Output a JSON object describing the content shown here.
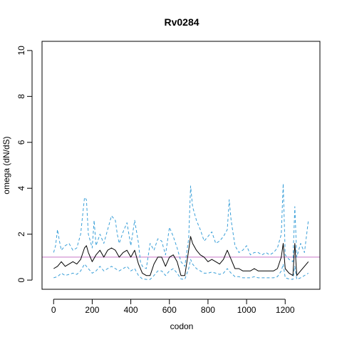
{
  "chart_data": {
    "type": "line",
    "title": "Rv0284",
    "xlabel": "codon",
    "ylabel": "omega (dN/dS)",
    "xlim": [
      -60,
      1380
    ],
    "ylim": [
      -0.4,
      10.4
    ],
    "x_ticks": [
      0,
      200,
      400,
      600,
      800,
      1000,
      1200
    ],
    "y_ticks": [
      0,
      2,
      4,
      6,
      8,
      10
    ],
    "reference_line": {
      "y": 1,
      "color": "#c678c6"
    },
    "colors": {
      "estimate": "#000000",
      "bounds": "#3a9fd8"
    },
    "series": [
      {
        "role": "omega",
        "style": "solid",
        "x": [
          0,
          20,
          40,
          60,
          80,
          100,
          120,
          140,
          160,
          170,
          180,
          200,
          220,
          240,
          260,
          280,
          300,
          320,
          340,
          360,
          380,
          400,
          420,
          440,
          460,
          480,
          500,
          520,
          540,
          560,
          580,
          600,
          620,
          640,
          660,
          680,
          700,
          710,
          720,
          740,
          760,
          780,
          800,
          820,
          840,
          860,
          880,
          900,
          910,
          920,
          940,
          960,
          980,
          1000,
          1020,
          1040,
          1060,
          1080,
          1100,
          1120,
          1140,
          1160,
          1180,
          1190,
          1200,
          1220,
          1240,
          1250,
          1260,
          1280,
          1300,
          1320
        ],
        "y": [
          0.5,
          0.6,
          0.8,
          0.6,
          0.7,
          0.8,
          0.7,
          0.9,
          1.4,
          1.5,
          1.2,
          0.8,
          1.1,
          1.3,
          1.0,
          1.3,
          1.4,
          1.3,
          1.0,
          1.2,
          1.3,
          1.0,
          1.3,
          0.7,
          0.3,
          0.2,
          0.2,
          0.7,
          1.0,
          1.0,
          0.6,
          1.0,
          1.1,
          0.8,
          0.2,
          0.2,
          1.3,
          1.9,
          1.6,
          1.3,
          1.1,
          1.0,
          0.8,
          0.9,
          0.8,
          0.7,
          0.9,
          1.3,
          1.1,
          0.9,
          0.5,
          0.5,
          0.4,
          0.4,
          0.4,
          0.5,
          0.4,
          0.4,
          0.4,
          0.4,
          0.4,
          0.5,
          1.0,
          1.6,
          0.5,
          0.3,
          0.2,
          1.6,
          0.2,
          0.4,
          0.6,
          0.8
        ]
      },
      {
        "role": "upper bound",
        "style": "dashed",
        "x": [
          0,
          10,
          20,
          30,
          40,
          60,
          80,
          100,
          120,
          140,
          160,
          170,
          180,
          200,
          210,
          220,
          240,
          260,
          280,
          300,
          320,
          330,
          340,
          360,
          380,
          400,
          420,
          440,
          450,
          460,
          480,
          500,
          520,
          540,
          560,
          580,
          600,
          620,
          640,
          660,
          680,
          700,
          710,
          720,
          740,
          760,
          780,
          800,
          820,
          840,
          860,
          880,
          900,
          910,
          920,
          940,
          960,
          980,
          1000,
          1020,
          1040,
          1060,
          1080,
          1100,
          1120,
          1140,
          1160,
          1180,
          1190,
          1200,
          1220,
          1240,
          1250,
          1260,
          1280,
          1300,
          1320
        ],
        "y": [
          1.2,
          1.5,
          2.2,
          1.7,
          1.3,
          1.5,
          1.6,
          1.3,
          1.4,
          2.0,
          3.6,
          3.5,
          2.0,
          1.4,
          2.6,
          1.5,
          2.0,
          1.6,
          2.2,
          2.8,
          2.6,
          2.0,
          1.6,
          2.1,
          2.5,
          1.5,
          2.6,
          1.6,
          0.8,
          0.6,
          0.5,
          1.6,
          1.3,
          1.8,
          1.7,
          1.1,
          2.3,
          1.9,
          1.4,
          0.8,
          0.6,
          1.8,
          4.1,
          3.2,
          2.6,
          2.2,
          1.7,
          1.9,
          2.1,
          1.6,
          1.7,
          1.9,
          2.2,
          3.5,
          2.6,
          1.5,
          1.2,
          1.3,
          1.5,
          1.1,
          1.2,
          1.2,
          1.1,
          1.2,
          1.1,
          1.2,
          1.4,
          2.0,
          4.2,
          1.1,
          0.9,
          0.8,
          3.2,
          1.0,
          1.6,
          1.2,
          2.6
        ]
      },
      {
        "role": "lower bound",
        "style": "dashed",
        "x": [
          0,
          20,
          40,
          60,
          80,
          100,
          120,
          140,
          160,
          180,
          200,
          220,
          240,
          260,
          280,
          300,
          320,
          340,
          360,
          380,
          400,
          420,
          440,
          460,
          480,
          500,
          520,
          540,
          560,
          580,
          600,
          620,
          640,
          660,
          680,
          700,
          710,
          720,
          740,
          760,
          780,
          800,
          820,
          840,
          860,
          880,
          900,
          910,
          920,
          940,
          960,
          980,
          1000,
          1020,
          1040,
          1060,
          1080,
          1100,
          1120,
          1140,
          1160,
          1180,
          1190,
          1200,
          1220,
          1240,
          1250,
          1260,
          1280,
          1300,
          1320
        ],
        "y": [
          0.1,
          0.15,
          0.3,
          0.2,
          0.25,
          0.3,
          0.25,
          0.4,
          0.7,
          0.5,
          0.3,
          0.4,
          0.6,
          0.4,
          0.5,
          0.6,
          0.5,
          0.4,
          0.5,
          0.6,
          0.4,
          0.5,
          0.2,
          0.05,
          0.03,
          0.03,
          0.2,
          0.4,
          0.4,
          0.2,
          0.4,
          0.5,
          0.3,
          0.05,
          0.03,
          0.5,
          0.9,
          0.7,
          0.5,
          0.4,
          0.3,
          0.3,
          0.35,
          0.3,
          0.25,
          0.3,
          0.5,
          0.4,
          0.3,
          0.15,
          0.15,
          0.1,
          0.1,
          0.1,
          0.15,
          0.1,
          0.1,
          0.1,
          0.1,
          0.1,
          0.15,
          0.4,
          0.7,
          0.1,
          0.05,
          0.03,
          0.6,
          0.03,
          0.1,
          0.2,
          0.3
        ]
      }
    ]
  }
}
